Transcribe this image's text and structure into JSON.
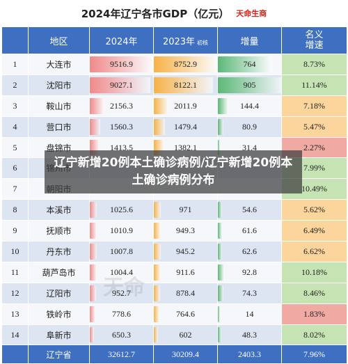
{
  "title": "2024年辽宁各市GDP（亿元）",
  "brand": "天命生商",
  "watermark": "天命",
  "overlay_text": "辽宁新增20例本土确诊病例/辽宁新增20例本土确诊病例分布",
  "colors": {
    "header": "#3e6fc0",
    "bar_2024": "#f08a8a",
    "bar_2023": "#f7b247",
    "bar_increase": "#5cb878",
    "growth_high": "#f1a9a4",
    "growth_mid": "#fbd59b",
    "growth_low": "#c6e4b3"
  },
  "headers": {
    "index": "",
    "region": "地区",
    "y2024": "2024年",
    "y2023": "2023年",
    "y2023_note": "初核",
    "increase": "增量",
    "growth": "名义\n增速"
  },
  "rows": [
    {
      "index": "1",
      "region": "大连市",
      "y2024": "9516.9",
      "y2023": "8752.9",
      "increase": "764",
      "growth": "8.73%",
      "growth_level": "low"
    },
    {
      "index": "2",
      "region": "沈阳市",
      "y2024": "9027.1",
      "y2023": "8122.1",
      "increase": "905",
      "growth": "11.14%",
      "growth_level": "low"
    },
    {
      "index": "3",
      "region": "鞍山市",
      "y2024": "2156.3",
      "y2023": "2011.9",
      "increase": "144.4",
      "growth": "7.18%",
      "growth_level": "mid"
    },
    {
      "index": "4",
      "region": "营口市",
      "y2024": "1560.3",
      "y2023": "1479.4",
      "increase": "80.9",
      "growth": "5.47%",
      "growth_level": "mid"
    },
    {
      "index": "5",
      "region": "盘锦市",
      "y2024": "1413.5",
      "y2023": "1382.1",
      "increase": "31.4",
      "growth": "2.27%",
      "growth_level": "high"
    },
    {
      "index": "6",
      "region": "锦州市",
      "y2024": "",
      "y2023": "",
      "increase": "",
      "growth": "7.99%",
      "growth_level": "low"
    },
    {
      "index": "7",
      "region": "朝阳市",
      "y2024": "",
      "y2023": "",
      "increase": "",
      "growth": "10.49%",
      "growth_level": "low"
    },
    {
      "index": "8",
      "region": "本溪市",
      "y2024": "1025.6",
      "y2023": "971",
      "increase": "54.6",
      "growth": "5.62%",
      "growth_level": "mid"
    },
    {
      "index": "9",
      "region": "抚顺市",
      "y2024": "1010.9",
      "y2023": "949.3",
      "increase": "61.6",
      "growth": "6.49%",
      "growth_level": "mid"
    },
    {
      "index": "10",
      "region": "丹东市",
      "y2024": "1007.8",
      "y2023": "945.2",
      "increase": "62.6",
      "growth": "6.62%",
      "growth_level": "mid"
    },
    {
      "index": "11",
      "region": "葫芦岛市",
      "y2024": "1004.4",
      "y2023": "911.6",
      "increase": "92.8",
      "growth": "10.18%",
      "growth_level": "low"
    },
    {
      "index": "12",
      "region": "辽阳市",
      "y2024": "952.7",
      "y2023": "878.4",
      "increase": "74.3",
      "growth": "8.46%",
      "growth_level": "low"
    },
    {
      "index": "13",
      "region": "铁岭市",
      "y2024": "778.6",
      "y2023": "764.6",
      "increase": "14",
      "growth": "1.83%",
      "growth_level": "high"
    },
    {
      "index": "14",
      "region": "阜新市",
      "y2024": "650.3",
      "y2023": "602",
      "increase": "48.3",
      "growth": "8.02%",
      "growth_level": "low"
    }
  ],
  "total": {
    "index": "",
    "region": "辽宁省",
    "y2024": "32612.7",
    "y2023": "30209.4",
    "increase": "2403.3",
    "growth": "7.96%"
  }
}
